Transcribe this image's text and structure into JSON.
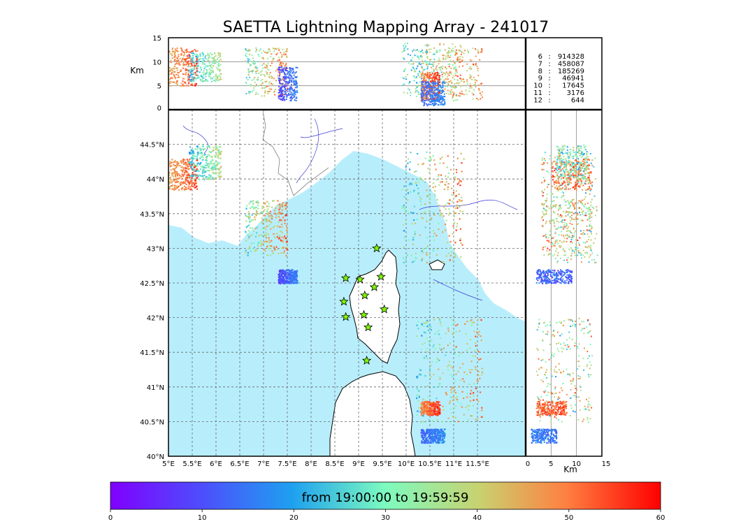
{
  "title": "SAETTA Lightning Mapping Array - 241017",
  "colors": {
    "sea": "#b8eefc",
    "land": "#ffffff",
    "coast": "#000000",
    "river": "#3b3bd9",
    "border": "#555555",
    "grid": "#666666",
    "highlight_stat": "#e01010",
    "station": "#7cfc00"
  },
  "chart_data": {
    "type": "scatter",
    "map": {
      "xlim": [
        5,
        12.5
      ],
      "ylim": [
        40,
        45
      ],
      "x_ticks": [
        "5°E",
        "5.5°E",
        "6°E",
        "6.5°E",
        "7°E",
        "7.5°E",
        "8°E",
        "8.5°E",
        "9°E",
        "9.5°E",
        "10°E",
        "10.5°E",
        "11°E",
        "11.5°E"
      ],
      "x_tick_values": [
        5,
        5.5,
        6,
        6.5,
        7,
        7.5,
        8,
        8.5,
        9,
        9.5,
        10,
        10.5,
        11,
        11.5
      ],
      "y_ticks": [
        "40°N",
        "40.5°N",
        "41°N",
        "41.5°N",
        "42°N",
        "42.5°N",
        "43°N",
        "43.5°N",
        "44°N",
        "44.5°N"
      ],
      "y_tick_values": [
        40,
        40.5,
        41,
        41.5,
        42,
        42.5,
        43,
        43.5,
        44,
        44.5
      ],
      "grid": true
    },
    "top_panel": {
      "ylabel": "Km",
      "ylim": [
        0,
        15
      ],
      "y_ticks": [
        "0",
        "5",
        "10",
        "15"
      ],
      "y_tick_values": [
        0,
        5,
        10,
        15
      ]
    },
    "right_panel": {
      "xlabel": "Km",
      "xlim": [
        0,
        15
      ],
      "x_ticks": [
        "0",
        "5",
        "10",
        "15"
      ],
      "x_tick_values": [
        0,
        5,
        10,
        15
      ]
    },
    "stats": [
      {
        "label": "6",
        "value": "914328"
      },
      {
        "label": "7",
        "value": "458087",
        "highlight": true
      },
      {
        "label": "8",
        "value": "185269"
      },
      {
        "label": "9",
        "value": "46941"
      },
      {
        "label": "10",
        "value": "17645"
      },
      {
        "label": "11",
        "value": "3176"
      },
      {
        "label": "12",
        "value": "644"
      }
    ],
    "stations": [
      {
        "lon": 9.38,
        "lat": 43.0
      },
      {
        "lon": 8.73,
        "lat": 42.57
      },
      {
        "lon": 9.03,
        "lat": 42.55
      },
      {
        "lon": 9.47,
        "lat": 42.59
      },
      {
        "lon": 9.33,
        "lat": 42.44
      },
      {
        "lon": 9.13,
        "lat": 42.32
      },
      {
        "lon": 8.69,
        "lat": 42.23
      },
      {
        "lon": 9.54,
        "lat": 42.12
      },
      {
        "lon": 8.73,
        "lat": 42.01
      },
      {
        "lon": 9.11,
        "lat": 42.04
      },
      {
        "lon": 9.2,
        "lat": 41.86
      },
      {
        "lon": 9.17,
        "lat": 41.38
      }
    ],
    "clusters": [
      {
        "lon": [
          5.0,
          5.6
        ],
        "lat": [
          43.85,
          44.3
        ],
        "alt": [
          5,
          13
        ],
        "t": [
          40,
          60
        ]
      },
      {
        "lon": [
          5.4,
          6.1
        ],
        "lat": [
          44.0,
          44.5
        ],
        "alt": [
          6,
          12
        ],
        "t": [
          15,
          45
        ]
      },
      {
        "lon": [
          6.6,
          7.5
        ],
        "lat": [
          42.9,
          43.7
        ],
        "alt": [
          3,
          13
        ],
        "t": [
          20,
          60
        ]
      },
      {
        "lon": [
          7.3,
          7.7
        ],
        "lat": [
          42.5,
          42.7
        ],
        "alt": [
          2,
          9
        ],
        "t": [
          5,
          20
        ]
      },
      {
        "lon": [
          9.9,
          11.2
        ],
        "lat": [
          42.8,
          44.4
        ],
        "alt": [
          3,
          14
        ],
        "t": [
          15,
          60
        ]
      },
      {
        "lon": [
          10.2,
          11.6
        ],
        "lat": [
          40.5,
          42.0
        ],
        "alt": [
          2,
          13
        ],
        "t": [
          15,
          60
        ]
      },
      {
        "lon": [
          10.3,
          10.7
        ],
        "lat": [
          40.6,
          40.8
        ],
        "alt": [
          2,
          8
        ],
        "t": [
          45,
          60
        ]
      },
      {
        "lon": [
          10.3,
          10.8
        ],
        "lat": [
          40.2,
          40.4
        ],
        "alt": [
          1,
          6
        ],
        "t": [
          10,
          20
        ]
      }
    ],
    "colorbar": {
      "label": "from 19:00:00 to 19:59:59",
      "range": [
        0,
        60
      ],
      "ticks": [
        "0",
        "10",
        "20",
        "30",
        "40",
        "50",
        "60"
      ],
      "tick_values": [
        0,
        10,
        20,
        30,
        40,
        50,
        60
      ],
      "colormap": "rainbow"
    }
  }
}
